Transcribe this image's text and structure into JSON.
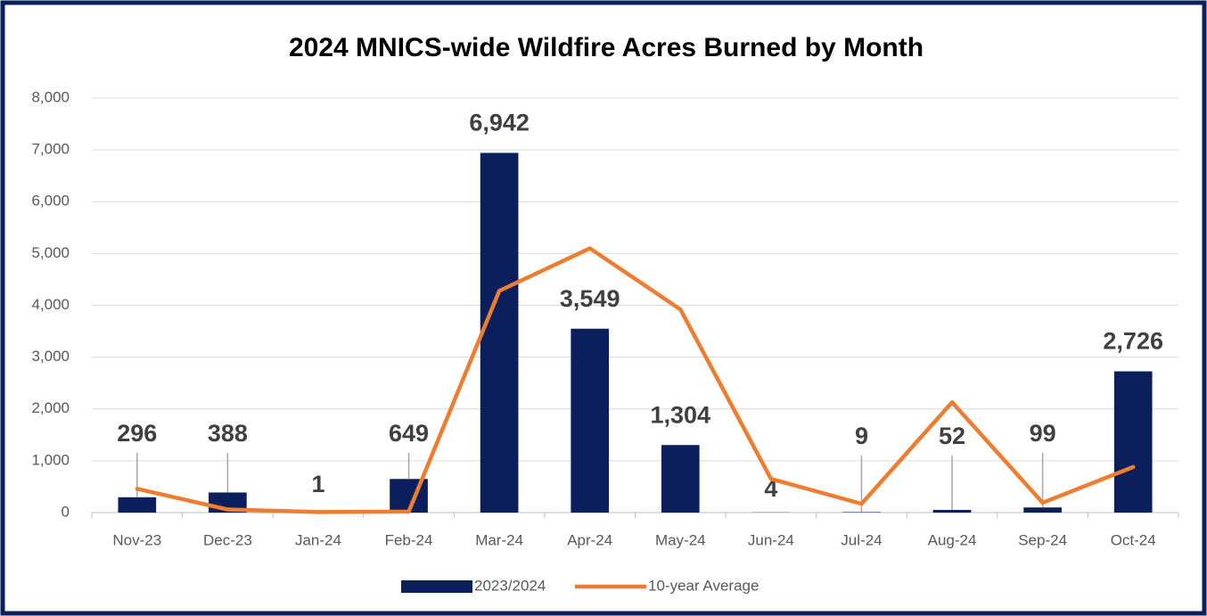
{
  "chart_data": {
    "type": "bar+line",
    "title": "2024 MNICS-wide Wildfire Acres Burned by Month",
    "categories": [
      "Nov-23",
      "Dec-23",
      "Jan-24",
      "Feb-24",
      "Mar-24",
      "Apr-24",
      "May-24",
      "Jun-24",
      "Jul-24",
      "Aug-24",
      "Sep-24",
      "Oct-24"
    ],
    "series": [
      {
        "name": "2023/2024",
        "type": "bar",
        "color": "#0b1f5c",
        "values": [
          296,
          388,
          1,
          649,
          6942,
          3549,
          1304,
          4,
          9,
          52,
          99,
          2726
        ],
        "value_labels": [
          "296",
          "388",
          "1",
          "649",
          "6,942",
          "3,549",
          "1,304",
          "4",
          "9",
          "52",
          "99",
          "2,726"
        ]
      },
      {
        "name": "10-year Average",
        "type": "line",
        "color": "#ed7d31",
        "values": [
          460,
          60,
          10,
          20,
          4280,
          5100,
          3920,
          650,
          170,
          2130,
          190,
          880
        ]
      }
    ],
    "ylim": [
      0,
      8000
    ],
    "yticks": [
      0,
      {
        "value": 1000,
        "label": "1,000"
      },
      {
        "value": 2000,
        "label": "2,000"
      },
      {
        "value": 3000,
        "label": "3,000"
      },
      {
        "value": 4000,
        "label": "4,000"
      },
      {
        "value": 5000,
        "label": "5,000"
      },
      {
        "value": 6000,
        "label": "6,000"
      },
      {
        "value": 7000,
        "label": "7,000"
      },
      {
        "value": 8000,
        "label": "8,000"
      }
    ],
    "grid": true,
    "legend": "bottom"
  }
}
